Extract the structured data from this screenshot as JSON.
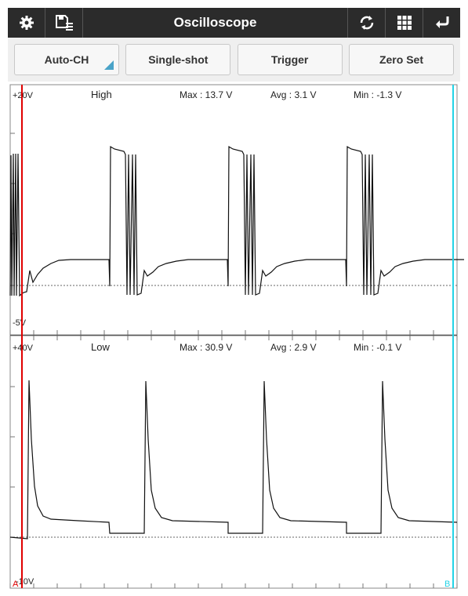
{
  "toolbar": {
    "title": "Oscilloscope",
    "left_icons": [
      "gear-icon",
      "save-list-icon"
    ],
    "right_icons": [
      "refresh-icon",
      "grid-icon",
      "back-icon"
    ]
  },
  "buttons": {
    "auto_ch": "Auto-CH",
    "single_shot": "Single-shot",
    "trigger": "Trigger",
    "zero_set": "Zero Set"
  },
  "channels": {
    "high": {
      "top_label": "+20V",
      "bottom_label": "-5V",
      "name": "High",
      "max": "Max : 13.7 V",
      "avg": "Avg : 3.1 V",
      "min": "Min : -1.3 V"
    },
    "low": {
      "top_label": "+40V",
      "bottom_label": "-10V",
      "name": "Low",
      "max": "Max : 30.9 V",
      "avg": "Avg : 2.9 V",
      "min": "Min : -0.1 V"
    }
  },
  "cursors": {
    "a_label": "A",
    "b_label": "B",
    "a_color": "#e00000",
    "b_color": "#22d3e6"
  }
}
